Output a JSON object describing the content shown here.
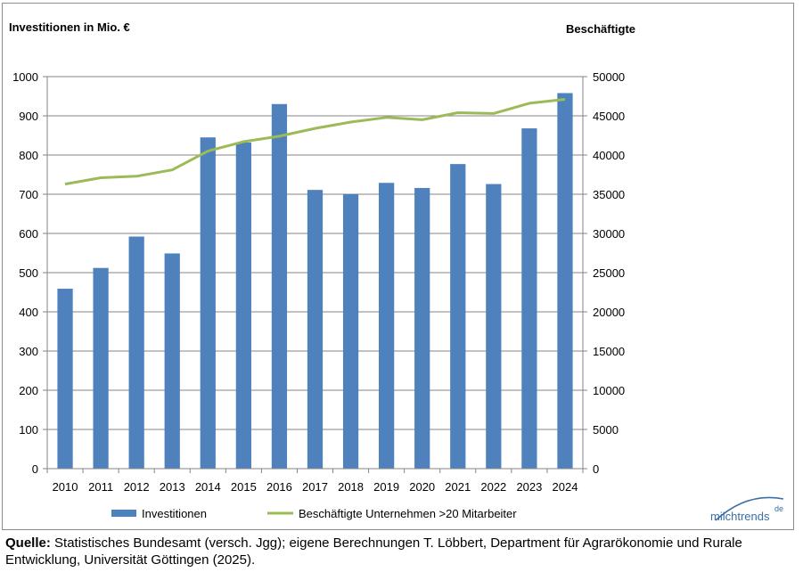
{
  "chart_data": {
    "type": "bar+line",
    "categories": [
      "2010",
      "2011",
      "2012",
      "2013",
      "2014",
      "2015",
      "2016",
      "2017",
      "2018",
      "2019",
      "2020",
      "2021",
      "2022",
      "2023",
      "2024"
    ],
    "series": [
      {
        "name": "Investitionen",
        "type": "bar",
        "axis": "left",
        "color": "#4f81bd",
        "values": [
          459,
          512,
          592,
          549,
          845,
          832,
          930,
          711,
          700,
          729,
          716,
          777,
          726,
          868,
          958
        ]
      },
      {
        "name": "Beschäftigte Unternehmen >20 Mitarbeiter",
        "type": "line",
        "axis": "right",
        "color": "#9bbb59",
        "values": [
          36300,
          37100,
          37300,
          38100,
          40500,
          41700,
          42400,
          43400,
          44200,
          44800,
          44500,
          45400,
          45300,
          46600,
          47100
        ]
      }
    ],
    "left_axis": {
      "label": "Investitionen in Mio. €",
      "min": 0,
      "max": 1000,
      "step": 100,
      "ticks": [
        "0",
        "100",
        "200",
        "300",
        "400",
        "500",
        "600",
        "700",
        "800",
        "900",
        "1000"
      ]
    },
    "right_axis": {
      "label": "Beschäftigte",
      "min": 0,
      "max": 50000,
      "step": 5000,
      "ticks": [
        "0",
        "5000",
        "10000",
        "15000",
        "20000",
        "25000",
        "30000",
        "35000",
        "40000",
        "45000",
        "50000"
      ]
    },
    "gridlines": "horizontal",
    "legend": {
      "position": "bottom",
      "items": [
        "Investitionen",
        "Beschäftigte Unternehmen >20 Mitarbeiter"
      ]
    }
  },
  "logo": {
    "text": "milchtrends",
    "suffix": "de",
    "color": "#3a6fa8"
  },
  "source": {
    "label": "Quelle:",
    "text": "Statistisches Bundesamt (versch. Jgg); eigene Berechnungen T. Löbbert, Department für Agrarökonomie und Rurale Entwicklung, Universität Göttingen (2025)."
  }
}
